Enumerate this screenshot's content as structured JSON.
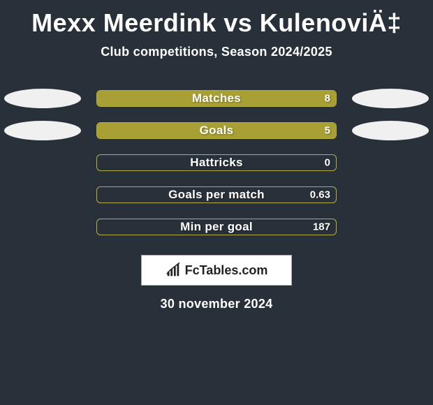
{
  "background_color": "#283039",
  "text_color": "#ffffff",
  "title": "Mexx Meerdink vs KulenoviÄ‡",
  "title_fontsize": 36,
  "subtitle": "Club competitions, Season 2024/2025",
  "subtitle_fontsize": 18,
  "bar_fill_color": "#a8a034",
  "bar_border_color": "#b7af3d",
  "avatar_color": "#f0f0f0",
  "stats": [
    {
      "label": "Matches",
      "left_value": "",
      "right_value": "8",
      "left_fill_pct": 100,
      "right_fill_pct": 100,
      "show_left_avatar": true,
      "show_right_avatar": true
    },
    {
      "label": "Goals",
      "left_value": "",
      "right_value": "5",
      "left_fill_pct": 100,
      "right_fill_pct": 100,
      "show_left_avatar": true,
      "show_right_avatar": true
    },
    {
      "label": "Hattricks",
      "left_value": "",
      "right_value": "0",
      "left_fill_pct": 0,
      "right_fill_pct": 0,
      "show_left_avatar": false,
      "show_right_avatar": false
    },
    {
      "label": "Goals per match",
      "left_value": "",
      "right_value": "0.63",
      "left_fill_pct": 0,
      "right_fill_pct": 0,
      "show_left_avatar": false,
      "show_right_avatar": false
    },
    {
      "label": "Min per goal",
      "left_value": "",
      "right_value": "187",
      "left_fill_pct": 0,
      "right_fill_pct": 0,
      "show_left_avatar": false,
      "show_right_avatar": false
    }
  ],
  "logo_text": "FcTables.com",
  "logo_bg": "#ffffff",
  "date": "30 november 2024"
}
